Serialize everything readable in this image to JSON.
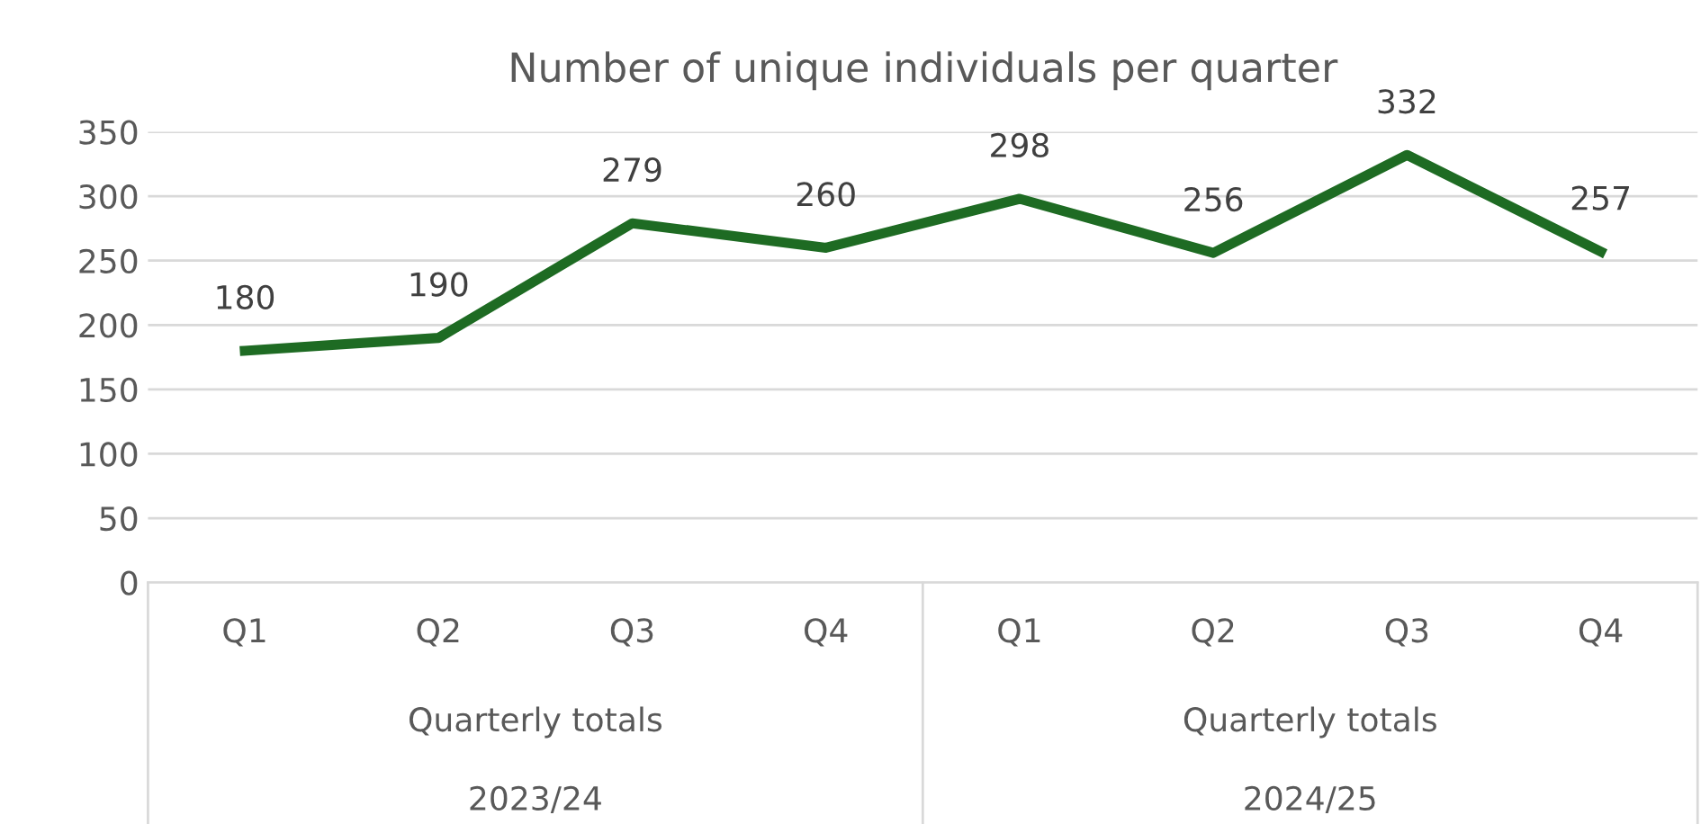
{
  "chart_data": {
    "type": "line",
    "title": "Number of unique individuals per quarter",
    "categories": [
      "Q1",
      "Q2",
      "Q3",
      "Q4",
      "Q1",
      "Q2",
      "Q3",
      "Q4"
    ],
    "series": [
      {
        "color": "#1e6b23",
        "values": [
          180,
          190,
          279,
          260,
          298,
          256,
          332,
          257
        ]
      }
    ],
    "ylim": [
      0,
      350
    ],
    "yticks": [
      0,
      50,
      100,
      150,
      200,
      250,
      300,
      350
    ],
    "grid": "y",
    "data_labels": true,
    "marker": "none",
    "line_style": "solid",
    "annotations": [
      "Quarterly totals",
      "Quarterly totals",
      "2023/24",
      "2024/25"
    ]
  }
}
